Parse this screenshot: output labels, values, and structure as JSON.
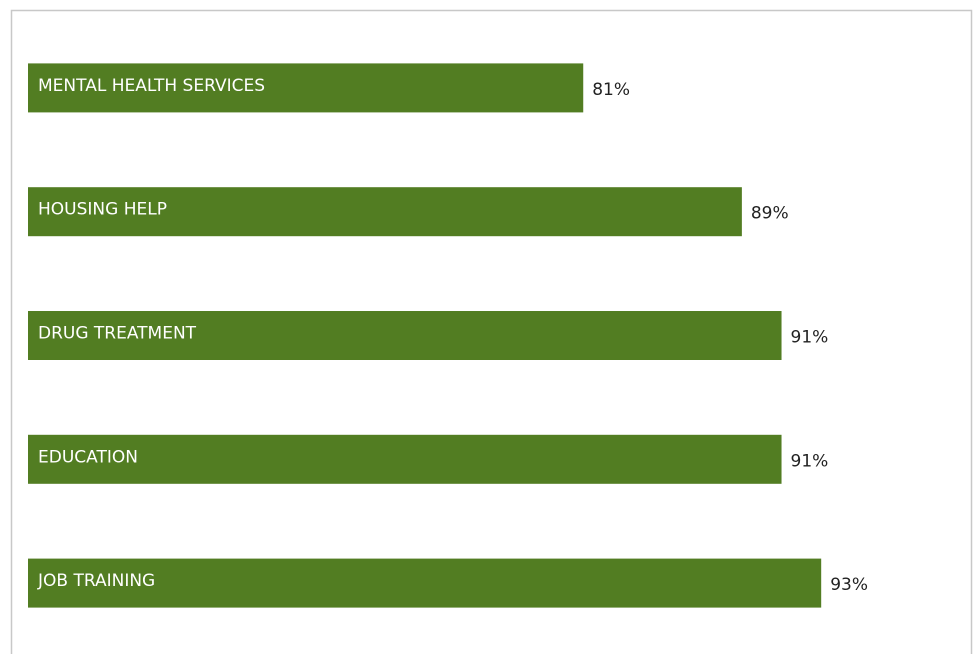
{
  "chart_data": {
    "type": "hbar",
    "categories": [
      "MENTAL HEALTH SERVICES",
      "HOUSING HELP",
      "DRUG TREATMENT",
      "EDUCATION",
      "JOB TRAINING"
    ],
    "values": [
      81,
      89,
      91,
      91,
      93
    ],
    "value_labels": [
      "81%",
      "89%",
      "91%",
      "91%",
      "93%"
    ],
    "color": "#527d22",
    "xlim": [
      53,
      100
    ]
  }
}
